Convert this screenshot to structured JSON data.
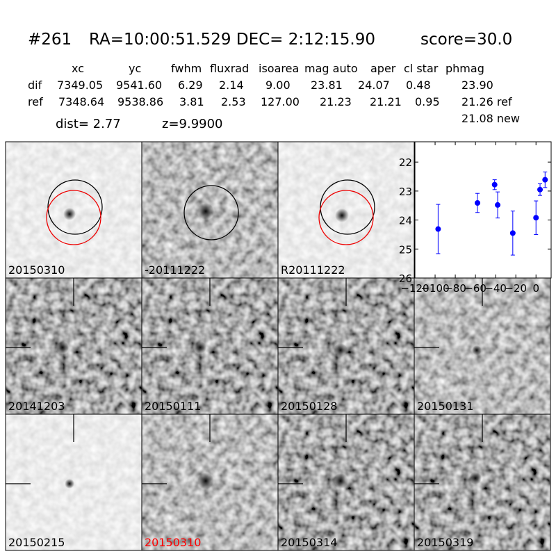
{
  "header": {
    "id": "#261",
    "coords": "RA=10:00:51.529 DEC= 2:12:15.90",
    "score": "score=30.0"
  },
  "table": {
    "columns": [
      "xc",
      "yc",
      "fwhm",
      "fluxrad",
      "isoarea",
      "mag auto",
      "aper",
      "cl star",
      "phmag"
    ],
    "rows": [
      [
        "dif",
        "7349.05",
        "9541.60",
        "6.29",
        "2.14",
        "9.00",
        "23.81",
        "24.07",
        "0.48",
        "23.90"
      ],
      [
        "ref",
        "7348.64",
        "9538.86",
        "3.81",
        "2.53",
        "127.00",
        "21.23",
        "21.21",
        "0.95",
        "21.26 ref"
      ]
    ],
    "extra": "21.08 new"
  },
  "dist": "dist=  2.77",
  "z": "z=9.9900",
  "panels": [
    {
      "label": "20150310"
    },
    {
      "label": "-20111222"
    },
    {
      "label": "R20111222"
    },
    {
      "label": "20141203"
    },
    {
      "label": "20150111"
    },
    {
      "label": "20150128"
    },
    {
      "label": "20150131"
    },
    {
      "label": "20150215"
    },
    {
      "label": "20150310",
      "label_color": "#ff0000"
    },
    {
      "label": "20150314"
    },
    {
      "label": "20150319"
    }
  ],
  "chart_data": {
    "type": "scatter",
    "x": [
      -97,
      -58,
      -41,
      -38,
      -23,
      0,
      4,
      9
    ],
    "values": [
      24.31,
      23.41,
      22.78,
      23.48,
      24.45,
      23.92,
      22.95,
      22.61
    ],
    "errors": [
      0.85,
      0.33,
      0.17,
      0.45,
      0.76,
      0.58,
      0.2,
      0.27
    ],
    "color": "#0000ff",
    "xlim": [
      -120,
      15
    ],
    "ylim": [
      26,
      21.3
    ],
    "xticks": [
      {
        "value": -120,
        "label": "−120"
      },
      {
        "value": -100,
        "label": "−100"
      },
      {
        "value": -80,
        "label": "−80"
      },
      {
        "value": -60,
        "label": "−60"
      },
      {
        "value": -40,
        "label": "−40"
      },
      {
        "value": -20,
        "label": "−20"
      },
      0
    ],
    "yticks": [
      22,
      23,
      24,
      25,
      26
    ]
  }
}
